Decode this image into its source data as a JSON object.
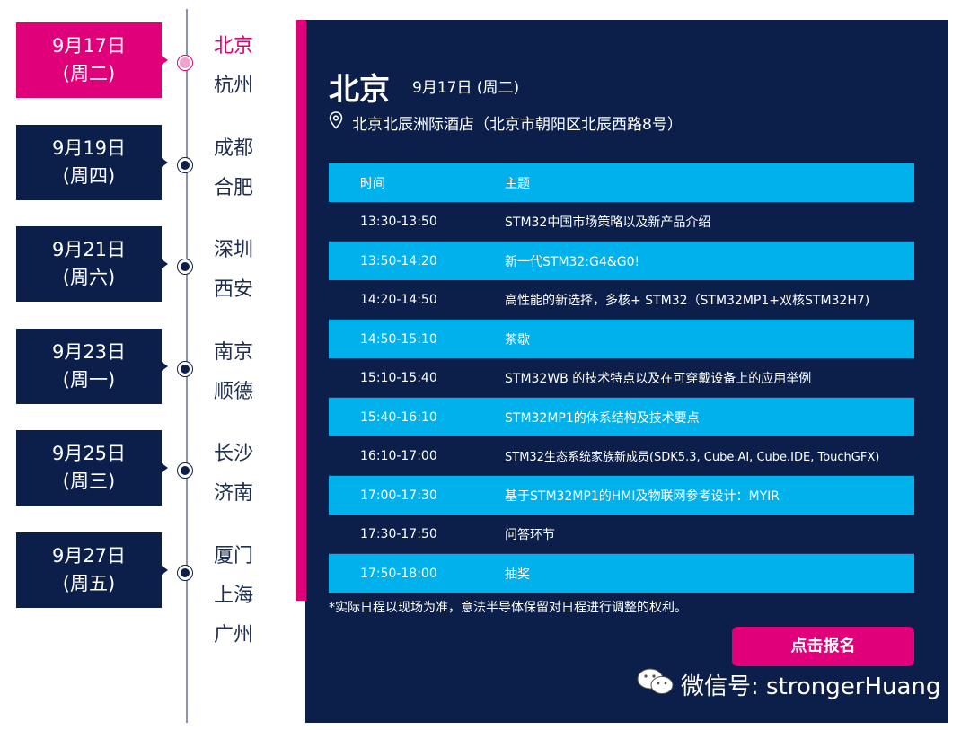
{
  "timeline": [
    {
      "date": "9月17日",
      "weekday": "(周二)",
      "cities": [
        "北京",
        "杭州"
      ],
      "active": true
    },
    {
      "date": "9月19日",
      "weekday": "(周四)",
      "cities": [
        "成都",
        "合肥"
      ]
    },
    {
      "date": "9月21日",
      "weekday": "(周六)",
      "cities": [
        "深圳",
        "西安"
      ]
    },
    {
      "date": "9月23日",
      "weekday": "(周一)",
      "cities": [
        "南京",
        "顺德"
      ]
    },
    {
      "date": "9月25日",
      "weekday": "(周三)",
      "cities": [
        "长沙",
        "济南"
      ]
    },
    {
      "date": "9月27日",
      "weekday": "(周五)",
      "cities": [
        "厦门",
        "上海",
        "广州"
      ]
    }
  ],
  "detail": {
    "city": "北京",
    "date": "9月17日 (周二)",
    "venue": "北京北辰洲际酒店（北京市朝阳区北辰西路8号）"
  },
  "agenda": {
    "headers": [
      "时间",
      "主题"
    ],
    "rows": [
      [
        "13:30-13:50",
        "STM32中国市场策略以及新产品介绍"
      ],
      [
        "13:50-14:20",
        "新一代STM32:G4&G0!"
      ],
      [
        "14:20-14:50",
        "高性能的新选择，多核+ STM32（STM32MP1+双核STM32H7)"
      ],
      [
        "14:50-15:10",
        "茶歇"
      ],
      [
        "15:10-15:40",
        "STM32WB 的技术特点以及在可穿戴设备上的应用举例"
      ],
      [
        "15:40-16:10",
        "STM32MP1的体系结构及技术要点"
      ],
      [
        "16:10-17:00",
        "STM32生态系统家族新成员(SDK5.3, Cube.AI, Cube.IDE, TouchGFX)"
      ],
      [
        "17:00-17:30",
        "基于STM32MP1的HMI及物联网参考设计：MYIR"
      ],
      [
        "17:30-17:50",
        "问答环节"
      ],
      [
        "17:50-18:00",
        "抽奖"
      ]
    ]
  },
  "note": "*实际日程以现场为准，意法半导体保留对日程进行调整的权利。",
  "register_label": "点击报名",
  "watermark": "微信号: strongerHuang",
  "colors": {
    "accent": "#e0007a",
    "navy": "#0c1f4a",
    "cyan": "#00b1eb"
  }
}
